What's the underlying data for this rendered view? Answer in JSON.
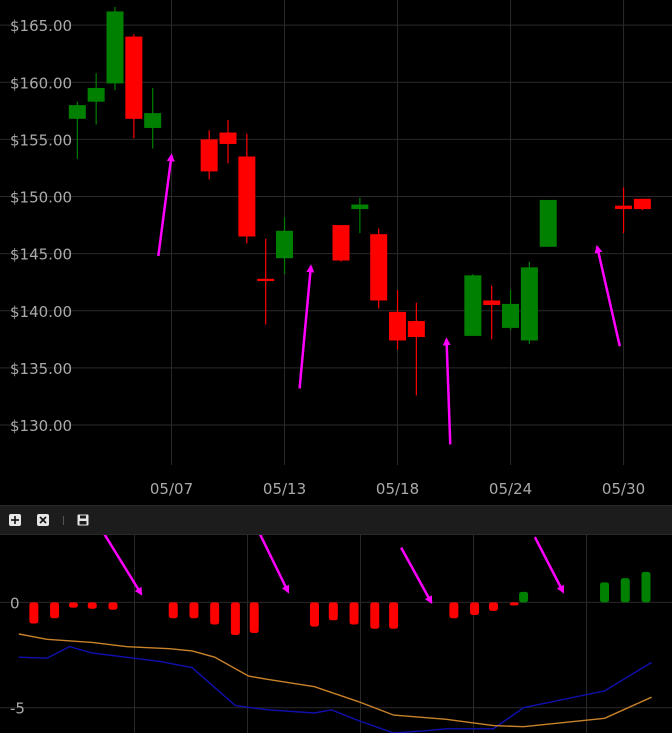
{
  "toolbar": {
    "add_icon": "plus-icon",
    "remove_icon": "close-icon",
    "save_icon": "save-icon"
  },
  "colors": {
    "up": "#008000",
    "down": "#ff0000",
    "grid": "#2a2a2a",
    "axis_text": "#aaaaaa",
    "arrow": "#ff00ff",
    "line1": "#1010b0",
    "line2": "#c8822a"
  },
  "chart_data": [
    {
      "type": "candlestick",
      "ylim": [
        126.5,
        167.2
      ],
      "yticks": [
        165,
        160,
        155,
        150,
        145,
        140,
        135,
        130
      ],
      "ytick_labels": [
        "$165.00",
        "$160.00",
        "$155.00",
        "$150.00",
        "$145.00",
        "$140.00",
        "$135.00",
        "$130.00"
      ],
      "xlim": [
        0,
        35.5
      ],
      "xticks": [
        {
          "label": "05/07",
          "x": 9
        },
        {
          "label": "05/13",
          "x": 15
        },
        {
          "label": "05/18",
          "x": 21
        },
        {
          "label": "05/24",
          "x": 27
        },
        {
          "label": "05/30",
          "x": 33
        }
      ],
      "grid": true,
      "candles": [
        {
          "x": 4,
          "o": 156.8,
          "h": 158.3,
          "l": 153.3,
          "c": 158.0
        },
        {
          "x": 5,
          "o": 158.3,
          "h": 160.8,
          "l": 156.3,
          "c": 159.5
        },
        {
          "x": 6,
          "o": 159.9,
          "h": 166.6,
          "l": 159.3,
          "c": 166.2
        },
        {
          "x": 7,
          "o": 164.0,
          "h": 164.2,
          "l": 155.1,
          "c": 156.8
        },
        {
          "x": 8,
          "o": 156.0,
          "h": 159.5,
          "l": 154.2,
          "c": 157.3
        },
        {
          "x": 11,
          "o": 155.0,
          "h": 155.8,
          "l": 151.5,
          "c": 152.2
        },
        {
          "x": 12,
          "o": 155.6,
          "h": 156.7,
          "l": 152.9,
          "c": 154.6
        },
        {
          "x": 13,
          "o": 153.5,
          "h": 155.5,
          "l": 145.9,
          "c": 146.5
        },
        {
          "x": 14,
          "o": 142.8,
          "h": 146.3,
          "l": 138.8,
          "c": 142.6
        },
        {
          "x": 15,
          "o": 144.6,
          "h": 148.2,
          "l": 143.2,
          "c": 147.0
        },
        {
          "x": 18,
          "o": 147.5,
          "h": 147.5,
          "l": 144.3,
          "c": 144.4
        },
        {
          "x": 19,
          "o": 148.9,
          "h": 149.9,
          "l": 146.8,
          "c": 149.3
        },
        {
          "x": 20,
          "o": 146.7,
          "h": 147.2,
          "l": 140.2,
          "c": 140.9
        },
        {
          "x": 21,
          "o": 139.9,
          "h": 141.8,
          "l": 136.6,
          "c": 137.4
        },
        {
          "x": 22,
          "o": 139.1,
          "h": 140.7,
          "l": 132.6,
          "c": 137.7
        },
        {
          "x": 25,
          "o": 137.8,
          "h": 143.2,
          "l": 137.8,
          "c": 143.1
        },
        {
          "x": 26,
          "o": 140.9,
          "h": 142.2,
          "l": 137.5,
          "c": 140.5
        },
        {
          "x": 27,
          "o": 138.5,
          "h": 141.8,
          "l": 138.3,
          "c": 140.6
        },
        {
          "x": 28,
          "o": 137.4,
          "h": 144.3,
          "l": 137.1,
          "c": 143.8
        },
        {
          "x": 29,
          "o": 145.6,
          "h": 149.7,
          "l": 145.6,
          "c": 149.7
        },
        {
          "x": 33,
          "o": 149.2,
          "h": 150.8,
          "l": 146.8,
          "c": 148.9
        },
        {
          "x": 34,
          "o": 149.8,
          "h": 149.8,
          "l": 148.8,
          "c": 148.9
        }
      ],
      "annotations": [
        {
          "type": "arrow",
          "from": [
            8.3,
            144.8
          ],
          "to": [
            9.0,
            153.6
          ]
        },
        {
          "type": "arrow",
          "from": [
            15.8,
            133.2
          ],
          "to": [
            16.4,
            143.9
          ]
        },
        {
          "type": "arrow",
          "from": [
            23.8,
            128.3
          ],
          "to": [
            23.6,
            137.5
          ]
        },
        {
          "type": "arrow",
          "from": [
            32.8,
            136.9
          ],
          "to": [
            31.6,
            145.6
          ]
        }
      ]
    },
    {
      "type": "bar",
      "ylim": [
        -6.2,
        3.2
      ],
      "yticks": [
        0,
        -5
      ],
      "ytick_labels": [
        "0",
        "-5"
      ],
      "xlim": [
        0,
        35.5
      ],
      "grid": true,
      "histogram": [
        {
          "x": 2.7,
          "v": -1.0
        },
        {
          "x": 3.8,
          "v": -0.75
        },
        {
          "x": 4.8,
          "v": -0.25
        },
        {
          "x": 5.8,
          "v": -0.3
        },
        {
          "x": 6.9,
          "v": -0.35
        },
        {
          "x": 10.1,
          "v": -0.75
        },
        {
          "x": 11.2,
          "v": -0.75
        },
        {
          "x": 12.3,
          "v": -1.05
        },
        {
          "x": 13.4,
          "v": -1.55
        },
        {
          "x": 14.4,
          "v": -1.45
        },
        {
          "x": 17.6,
          "v": -1.15
        },
        {
          "x": 18.6,
          "v": -0.85
        },
        {
          "x": 19.7,
          "v": -1.05
        },
        {
          "x": 20.8,
          "v": -1.25
        },
        {
          "x": 21.8,
          "v": -1.25
        },
        {
          "x": 25.0,
          "v": -0.75
        },
        {
          "x": 26.1,
          "v": -0.6
        },
        {
          "x": 27.1,
          "v": -0.4
        },
        {
          "x": 28.2,
          "v": -0.05
        },
        {
          "x": 28.7,
          "v": 0.5
        },
        {
          "x": 33.0,
          "v": 0.95
        },
        {
          "x": 34.1,
          "v": 1.15
        },
        {
          "x": 35.2,
          "v": 1.45
        }
      ],
      "series": [
        {
          "points": [
            [
              1.9,
              -2.6
            ],
            [
              3.4,
              -2.65
            ],
            [
              4.6,
              -2.1
            ],
            [
              5.8,
              -2.4
            ],
            [
              7.6,
              -2.6
            ],
            [
              9.4,
              -2.8
            ],
            [
              11.1,
              -3.1
            ],
            [
              13.4,
              -4.9
            ],
            [
              15.1,
              -5.1
            ],
            [
              17.6,
              -5.25
            ],
            [
              18.5,
              -5.1
            ],
            [
              19.9,
              -5.6
            ],
            [
              21.8,
              -6.2
            ],
            [
              23.4,
              -6.1
            ],
            [
              24.6,
              -6.0
            ],
            [
              27.1,
              -6.0
            ],
            [
              28.7,
              -5.0
            ],
            [
              33.0,
              -4.2
            ],
            [
              35.5,
              -2.85
            ]
          ]
        },
        {
          "points": [
            [
              1.9,
              -1.5
            ],
            [
              3.4,
              -1.75
            ],
            [
              5.8,
              -1.9
            ],
            [
              7.6,
              -2.1
            ],
            [
              9.9,
              -2.2
            ],
            [
              11.1,
              -2.3
            ],
            [
              12.3,
              -2.6
            ],
            [
              14.1,
              -3.5
            ],
            [
              15.1,
              -3.65
            ],
            [
              17.6,
              -4.0
            ],
            [
              19.9,
              -4.7
            ],
            [
              21.8,
              -5.35
            ],
            [
              24.6,
              -5.55
            ],
            [
              27.1,
              -5.85
            ],
            [
              28.7,
              -5.9
            ],
            [
              33.0,
              -5.5
            ],
            [
              35.5,
              -4.5
            ]
          ]
        }
      ],
      "annotations": [
        {
          "type": "arrow",
          "from": [
            6.3,
            3.45
          ],
          "to": [
            8.4,
            0.4
          ]
        },
        {
          "type": "arrow",
          "from": [
            14.7,
            3.25
          ],
          "to": [
            16.2,
            0.5
          ]
        },
        {
          "type": "arrow",
          "from": [
            22.2,
            2.6
          ],
          "to": [
            23.8,
            0.0
          ]
        },
        {
          "type": "arrow",
          "from": [
            29.3,
            3.1
          ],
          "to": [
            30.8,
            0.5
          ]
        }
      ]
    }
  ]
}
